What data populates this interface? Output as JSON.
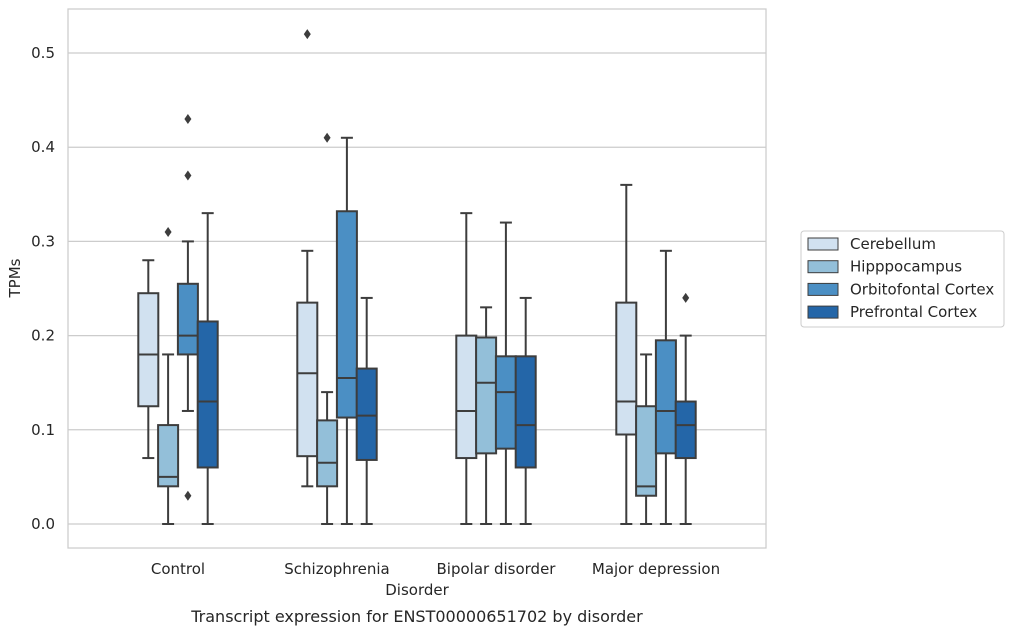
{
  "chart_data": {
    "type": "box",
    "xlabel": "Disorder",
    "ylabel": "TPMs",
    "caption": "Transcript expression for ENST00000651702 by disorder",
    "ylim": [
      -0.025,
      0.545
    ],
    "yticks": [
      0.0,
      0.1,
      0.2,
      0.3,
      0.4,
      0.5
    ],
    "ytick_labels": [
      "0.0",
      "0.1",
      "0.2",
      "0.3",
      "0.4",
      "0.5"
    ],
    "grid": true,
    "legend_position": "right",
    "categories": [
      "Control",
      "Schizophrenia",
      "Bipolar disorder",
      "Major depression"
    ],
    "series": [
      {
        "name": "Cerebellum",
        "color": "#d1e1f0",
        "boxes": [
          {
            "whisker_low": 0.07,
            "q1": 0.125,
            "median": 0.18,
            "q3": 0.245,
            "whisker_high": 0.28,
            "outliers": []
          },
          {
            "whisker_low": 0.04,
            "q1": 0.072,
            "median": 0.16,
            "q3": 0.235,
            "whisker_high": 0.29,
            "outliers": [
              0.52
            ]
          },
          {
            "whisker_low": 0.0,
            "q1": 0.07,
            "median": 0.12,
            "q3": 0.2,
            "whisker_high": 0.33,
            "outliers": []
          },
          {
            "whisker_low": 0.0,
            "q1": 0.095,
            "median": 0.13,
            "q3": 0.235,
            "whisker_high": 0.36,
            "outliers": []
          }
        ]
      },
      {
        "name": "Hipppocampus",
        "color": "#93bfd9",
        "boxes": [
          {
            "whisker_low": 0.0,
            "q1": 0.04,
            "median": 0.05,
            "q3": 0.105,
            "whisker_high": 0.18,
            "outliers": [
              0.31
            ]
          },
          {
            "whisker_low": 0.0,
            "q1": 0.04,
            "median": 0.065,
            "q3": 0.11,
            "whisker_high": 0.14,
            "outliers": [
              0.41
            ]
          },
          {
            "whisker_low": 0.0,
            "q1": 0.075,
            "median": 0.15,
            "q3": 0.198,
            "whisker_high": 0.23,
            "outliers": []
          },
          {
            "whisker_low": 0.0,
            "q1": 0.03,
            "median": 0.04,
            "q3": 0.125,
            "whisker_high": 0.18,
            "outliers": []
          }
        ]
      },
      {
        "name": "Orbitofontal Cortex",
        "color": "#4b8fc4",
        "boxes": [
          {
            "whisker_low": 0.12,
            "q1": 0.18,
            "median": 0.2,
            "q3": 0.255,
            "whisker_high": 0.3,
            "outliers": [
              0.43,
              0.37,
              0.03
            ]
          },
          {
            "whisker_low": 0.0,
            "q1": 0.113,
            "median": 0.155,
            "q3": 0.332,
            "whisker_high": 0.41,
            "outliers": []
          },
          {
            "whisker_low": 0.0,
            "q1": 0.08,
            "median": 0.14,
            "q3": 0.178,
            "whisker_high": 0.32,
            "outliers": []
          },
          {
            "whisker_low": 0.0,
            "q1": 0.075,
            "median": 0.12,
            "q3": 0.195,
            "whisker_high": 0.29,
            "outliers": []
          }
        ]
      },
      {
        "name": "Prefrontal Cortex",
        "color": "#2466a8",
        "boxes": [
          {
            "whisker_low": 0.0,
            "q1": 0.06,
            "median": 0.13,
            "q3": 0.215,
            "whisker_high": 0.33,
            "outliers": []
          },
          {
            "whisker_low": 0.0,
            "q1": 0.068,
            "median": 0.115,
            "q3": 0.165,
            "whisker_high": 0.24,
            "outliers": []
          },
          {
            "whisker_low": 0.0,
            "q1": 0.06,
            "median": 0.105,
            "q3": 0.178,
            "whisker_high": 0.24,
            "outliers": []
          },
          {
            "whisker_low": 0.0,
            "q1": 0.07,
            "median": 0.105,
            "q3": 0.13,
            "whisker_high": 0.2,
            "outliers": [
              0.24
            ]
          }
        ]
      }
    ]
  }
}
